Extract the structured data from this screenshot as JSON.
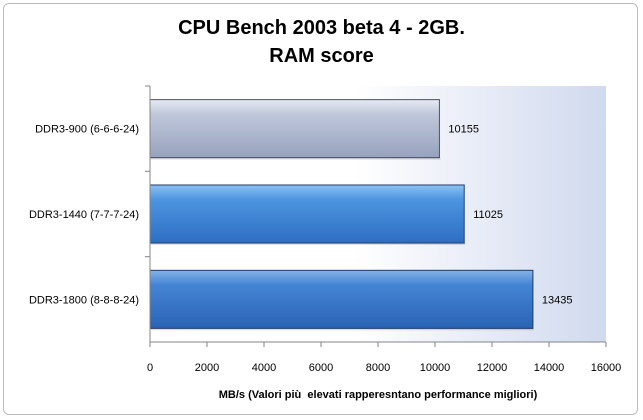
{
  "chart_data": {
    "type": "bar",
    "orientation": "horizontal",
    "title": "CPU Bench 2003 beta 4 - 2GB.",
    "subtitle": "RAM score",
    "xlabel": "MB/s (Valori più  elevati rapperesntano performance migliori)",
    "ylabel": "",
    "categories": [
      "DDR3-900 (6-6-6-24)",
      "DDR3-1440 (7-7-7-24)",
      "DDR3-1800 (8-8-8-24)"
    ],
    "values": [
      10155,
      11025,
      13435
    ],
    "data_labels": [
      "10155",
      "11025",
      "13435"
    ],
    "xlim": [
      0,
      16000
    ],
    "xticks": [
      "0",
      "2000",
      "4000",
      "6000",
      "8000",
      "10000",
      "12000",
      "14000",
      "16000"
    ],
    "bar_colors": [
      "#a9b3cc",
      "#3f86d6",
      "#3a78c6"
    ],
    "plot_background": "gradient white to #d4dcef",
    "grid": false,
    "legend": "none"
  }
}
